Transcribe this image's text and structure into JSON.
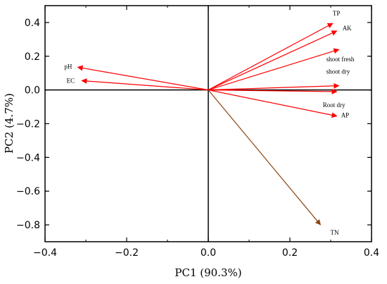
{
  "chart_data": {
    "type": "biplot",
    "xlabel": "PC1 (90.3%)",
    "ylabel": "PC2 (4.7%)",
    "xlim": [
      -0.4,
      0.4
    ],
    "ylim": [
      -0.9,
      0.5
    ],
    "x_ticks": [
      -0.4,
      -0.2,
      0.0,
      0.2,
      0.4
    ],
    "x_tick_labels": [
      "−0.4",
      "−0.2",
      "0.0",
      "0.2",
      "0.4"
    ],
    "y_ticks": [
      0.4,
      0.2,
      0.0,
      -0.2,
      -0.4,
      -0.6,
      -0.8
    ],
    "y_tick_labels": [
      "0.4",
      "0.2",
      "0.0",
      "−0.2",
      "−0.4",
      "−0.6",
      "−0.8"
    ],
    "grid": false,
    "zero_lines": true,
    "vectors": [
      {
        "label": "TP",
        "x": 0.305,
        "y": 0.395,
        "color": "#ff0000"
      },
      {
        "label": "AK",
        "x": 0.315,
        "y": 0.35,
        "color": "#ff0000"
      },
      {
        "label": "shoot fresh",
        "x": 0.32,
        "y": 0.24,
        "color": "#ff0000"
      },
      {
        "label": "shoot dry",
        "x": 0.32,
        "y": 0.025,
        "color": "#ff0000"
      },
      {
        "label": "Root dry",
        "x": 0.315,
        "y": -0.01,
        "color": "#ff0000"
      },
      {
        "label": "AP",
        "x": 0.315,
        "y": -0.155,
        "color": "#ff0000"
      },
      {
        "label": "TN",
        "x": 0.275,
        "y": -0.8,
        "color": "#8b4513"
      },
      {
        "label": "pH",
        "x": -0.32,
        "y": 0.135,
        "color": "#ff0000"
      },
      {
        "label": "EC",
        "x": -0.31,
        "y": 0.055,
        "color": "#ff0000"
      }
    ]
  }
}
